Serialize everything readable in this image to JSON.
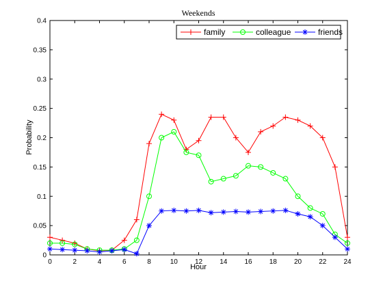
{
  "chart_data": {
    "type": "line",
    "title": "Weekends",
    "xlabel": "Hour",
    "ylabel": "Probability",
    "xlim": [
      0,
      24
    ],
    "ylim": [
      0,
      0.4
    ],
    "xticks": [
      0,
      2,
      4,
      6,
      8,
      10,
      12,
      14,
      16,
      18,
      20,
      22,
      24
    ],
    "yticks": [
      0,
      0.05,
      0.1,
      0.15,
      0.2,
      0.25,
      0.3,
      0.35,
      0.4
    ],
    "grid": false,
    "legend_position": "top-right",
    "x": [
      0,
      1,
      2,
      3,
      4,
      5,
      6,
      7,
      8,
      9,
      10,
      11,
      12,
      13,
      14,
      15,
      16,
      17,
      18,
      19,
      20,
      21,
      22,
      23,
      24
    ],
    "series": [
      {
        "name": "family",
        "color": "#ff0000",
        "marker": "plus",
        "values": [
          0.03,
          0.025,
          0.02,
          0.01,
          0.007,
          0.008,
          0.025,
          0.06,
          0.19,
          0.24,
          0.23,
          0.18,
          0.195,
          0.235,
          0.235,
          0.2,
          0.175,
          0.21,
          0.22,
          0.235,
          0.23,
          0.22,
          0.2,
          0.15,
          0.03
        ]
      },
      {
        "name": "colleague",
        "color": "#00ff00",
        "marker": "circle",
        "values": [
          0.02,
          0.02,
          0.018,
          0.01,
          0.008,
          0.008,
          0.01,
          0.025,
          0.1,
          0.2,
          0.21,
          0.175,
          0.17,
          0.125,
          0.13,
          0.135,
          0.152,
          0.15,
          0.14,
          0.13,
          0.1,
          0.08,
          0.07,
          0.035,
          0.02
        ]
      },
      {
        "name": "friends",
        "color": "#0000ff",
        "marker": "star",
        "values": [
          0.01,
          0.009,
          0.008,
          0.007,
          0.005,
          0.007,
          0.009,
          0.002,
          0.05,
          0.075,
          0.076,
          0.075,
          0.076,
          0.072,
          0.073,
          0.074,
          0.073,
          0.074,
          0.075,
          0.076,
          0.07,
          0.065,
          0.05,
          0.03,
          0.01
        ]
      }
    ]
  }
}
